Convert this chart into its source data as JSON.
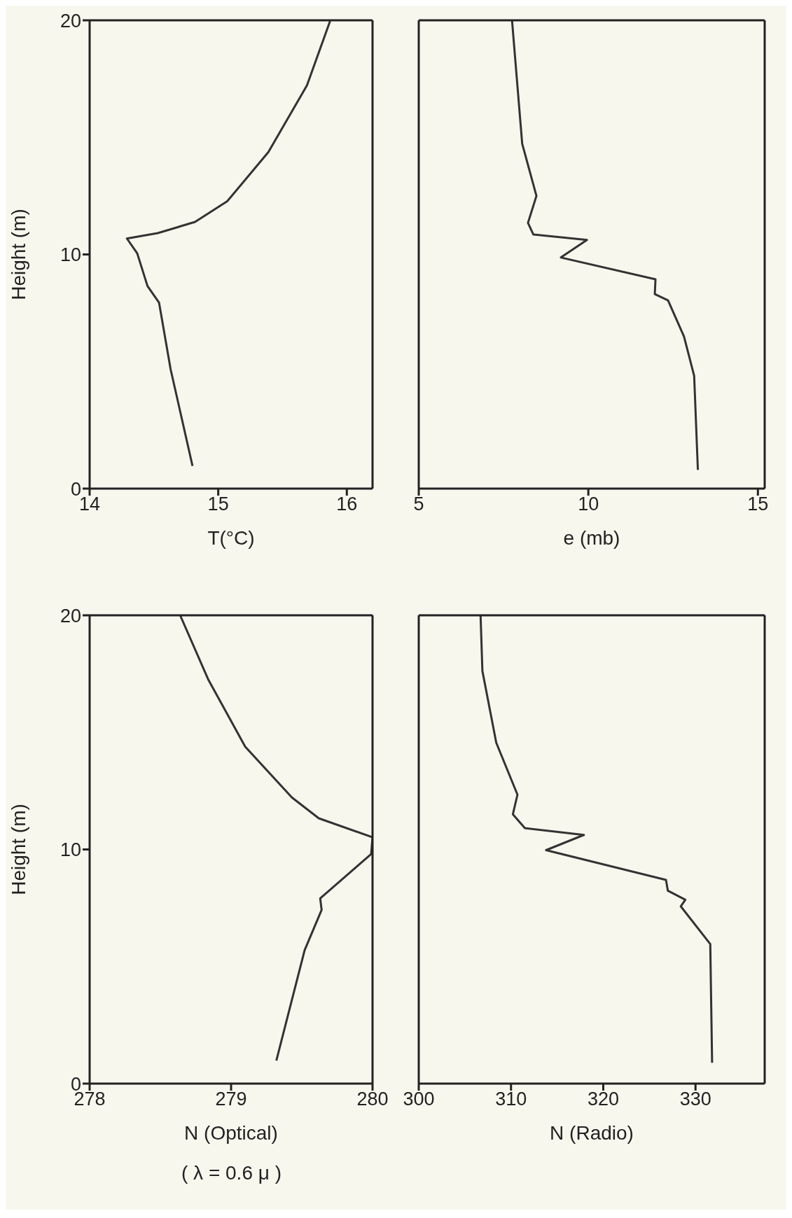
{
  "chart_data": [
    {
      "type": "line",
      "xlabel": "T(°C)",
      "ylabel": "Height (m)",
      "xlim": [
        14,
        16.2
      ],
      "xticks": [
        14,
        15,
        16
      ],
      "ylim": [
        0,
        20
      ],
      "yticks": [
        0,
        10,
        20
      ],
      "grid": false,
      "legend": false,
      "marker": "none",
      "line_style": "solid",
      "series": [
        {
          "color": "#333333",
          "x": [
            14.8,
            14.63,
            14.54,
            14.45,
            14.37,
            14.29,
            14.53,
            14.82,
            15.07,
            15.39,
            15.69,
            15.87
          ],
          "values": [
            0.97,
            5.09,
            7.94,
            8.65,
            10.05,
            10.68,
            10.91,
            11.39,
            12.27,
            14.37,
            17.22,
            19.97
          ]
        }
      ]
    },
    {
      "type": "line",
      "xlabel": "e (mb)",
      "xlim": [
        5,
        15.2
      ],
      "xticks": [
        5,
        10,
        15
      ],
      "ylim": [
        0,
        20
      ],
      "yticks": [
        0,
        10,
        20
      ],
      "tick_labels": "x",
      "grid": false,
      "legend": false,
      "marker": "none",
      "line_style": "solid",
      "series": [
        {
          "color": "#333333",
          "x": [
            13.23,
            13.12,
            12.82,
            12.35,
            11.96,
            11.98,
            9.19,
            9.96,
            8.38,
            8.22,
            8.47,
            8.05,
            7.75
          ],
          "values": [
            0.8,
            4.82,
            6.5,
            8.04,
            8.31,
            8.94,
            9.87,
            10.62,
            10.85,
            11.35,
            12.5,
            14.73,
            20.0
          ]
        }
      ]
    },
    {
      "type": "line",
      "xlabel": "N (Optical)",
      "ylabel": "Height (m)",
      "annotations": [
        "( λ = 0.6 μ )"
      ],
      "xlim": [
        278,
        280
      ],
      "xticks": [
        278,
        279,
        280
      ],
      "ylim": [
        0,
        20
      ],
      "yticks": [
        0,
        10,
        20
      ],
      "grid": false,
      "legend": false,
      "marker": "none",
      "line_style": "solid",
      "series": [
        {
          "color": "#333333",
          "x": [
            279.32,
            279.52,
            279.64,
            279.63,
            279.99,
            280.0,
            279.62,
            279.43,
            279.1,
            278.84,
            278.64
          ],
          "values": [
            0.98,
            5.7,
            7.42,
            7.91,
            9.8,
            10.52,
            11.33,
            12.22,
            14.39,
            17.24,
            20.0
          ]
        }
      ]
    },
    {
      "type": "line",
      "xlabel": "N (Radio)",
      "xlim": [
        300,
        337.5
      ],
      "xticks": [
        300,
        310,
        320,
        330
      ],
      "ylim": [
        0,
        20
      ],
      "yticks": [
        0,
        10,
        20
      ],
      "tick_labels": "x",
      "grid": false,
      "legend": false,
      "marker": "none",
      "line_style": "solid",
      "series": [
        {
          "color": "#333333",
          "x": [
            331.8,
            331.6,
            328.4,
            328.9,
            327.0,
            326.8,
            313.8,
            317.9,
            311.5,
            310.2,
            310.7,
            308.4,
            306.9,
            306.7
          ],
          "values": [
            0.89,
            5.96,
            7.57,
            7.85,
            8.24,
            8.7,
            9.97,
            10.62,
            10.91,
            11.5,
            12.34,
            14.56,
            17.62,
            20.0
          ]
        }
      ]
    }
  ]
}
